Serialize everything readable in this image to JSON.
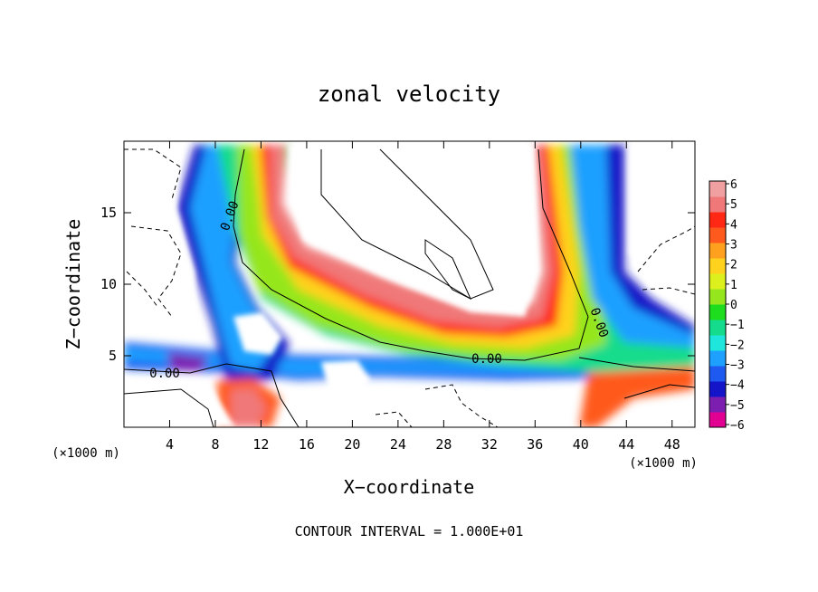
{
  "chart_data": {
    "type": "heatmap",
    "title": "zonal velocity",
    "xlabel": "X−coordinate",
    "ylabel": "Z−coordinate",
    "x_units_left": "(×1000 m)",
    "x_units_right": "(×1000 m)",
    "xlim": [
      0,
      50
    ],
    "ylim": [
      0,
      20
    ],
    "x_ticks": [
      4,
      8,
      12,
      16,
      20,
      24,
      28,
      32,
      36,
      40,
      44,
      48
    ],
    "y_ticks": [
      5,
      10,
      15
    ],
    "colorbar": {
      "min": -6,
      "max": 6,
      "ticks": [
        "6",
        "5",
        "4",
        "3",
        "2",
        "1",
        "0",
        "−1",
        "−2",
        "−3",
        "−4",
        "−5",
        "−6"
      ],
      "colors": [
        "#e20093",
        "#7c1fb0",
        "#1414c8",
        "#1e5af0",
        "#1ea0ff",
        "#1ee6dc",
        "#14dc8c",
        "#1edc1e",
        "#96e61e",
        "#dcf01e",
        "#ffd21e",
        "#ffa01e",
        "#ff5a1e",
        "#ff2814",
        "#f07878",
        "#f0a0a0"
      ]
    },
    "contour_labels": [
      "0.00",
      "0.00",
      "0.00",
      "0.00"
    ],
    "footer": "CONTOUR INTERVAL = 1.000E+01"
  }
}
